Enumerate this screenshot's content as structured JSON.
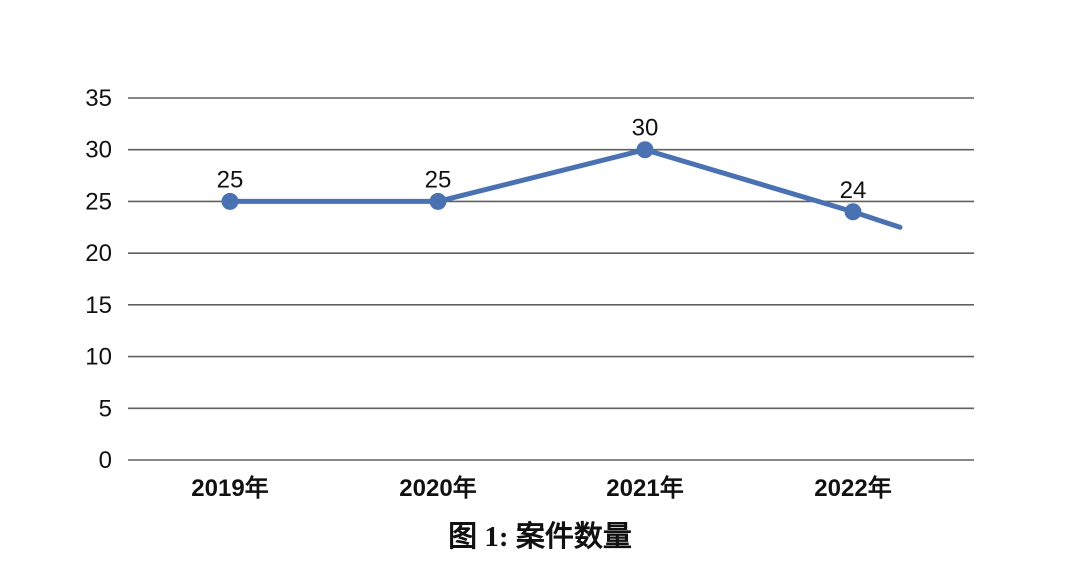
{
  "chart_data": {
    "type": "line",
    "title": "图 1: 案件数量",
    "categories": [
      "2019年",
      "2020年",
      "2021年",
      "2022年"
    ],
    "series": [
      {
        "name": "案件数量",
        "values": [
          25,
          25,
          30,
          24
        ]
      }
    ],
    "data_labels": [
      "25",
      "25",
      "30",
      "24"
    ],
    "yticks": [
      0,
      5,
      10,
      15,
      20,
      25,
      30,
      35
    ],
    "ylim": [
      0,
      35
    ],
    "grid": true,
    "legend_position": "none",
    "trailing_segment_end_value": 22.5,
    "colors": {
      "line": "#4a72b2",
      "marker": "#4a72b2",
      "gridline": "#606060",
      "text": "#111111"
    }
  }
}
